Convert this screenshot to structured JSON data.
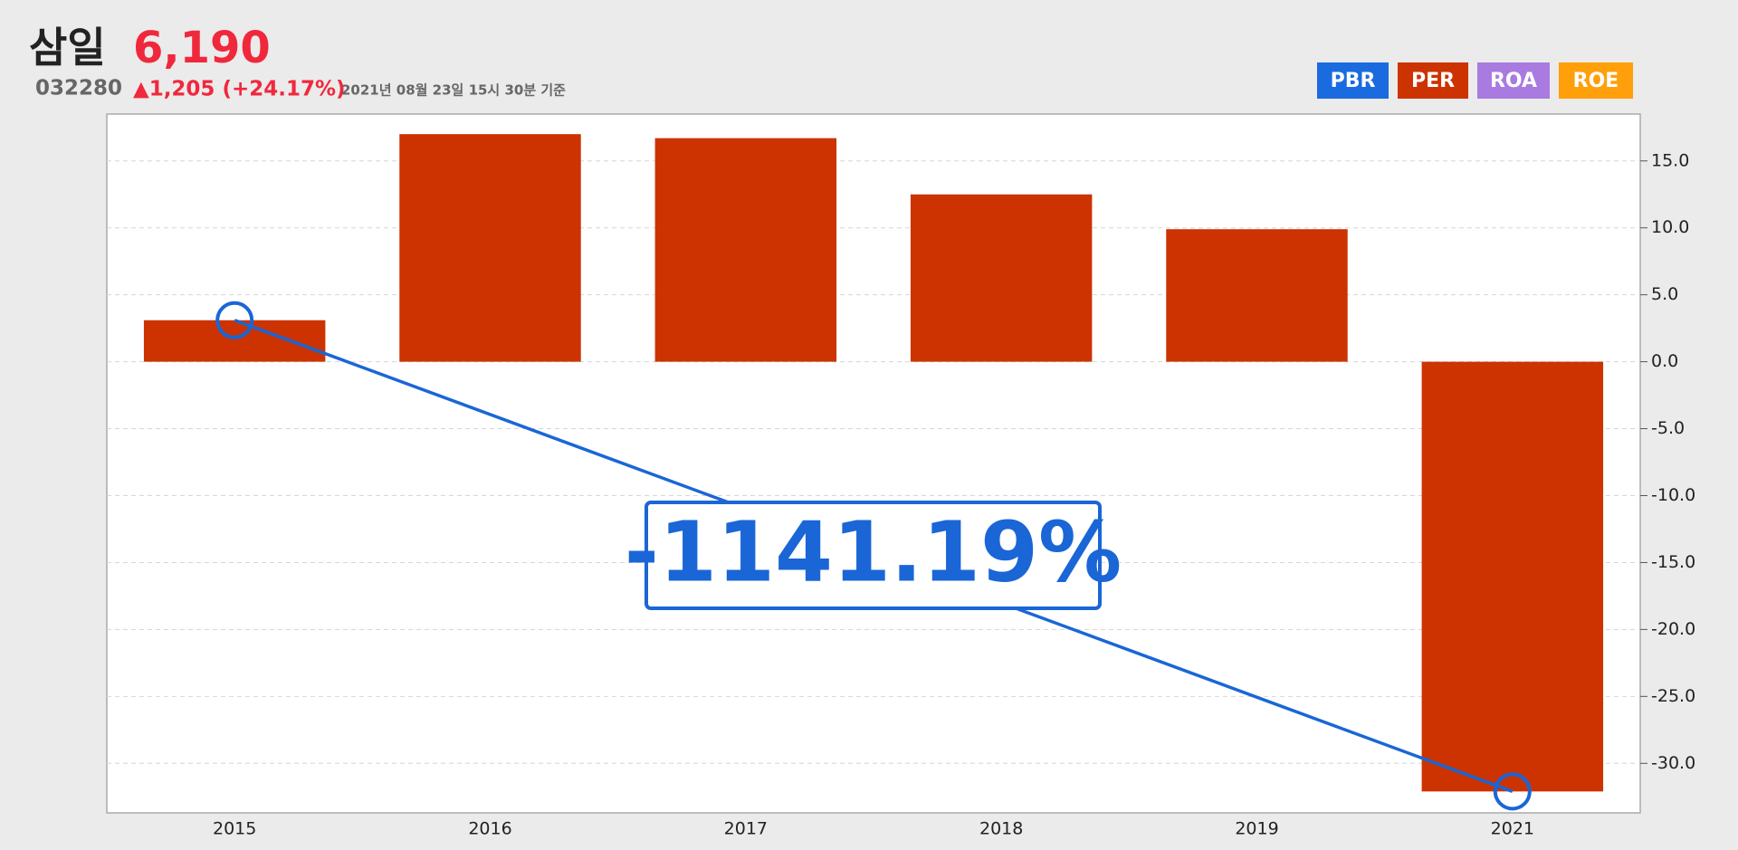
{
  "header": {
    "name": "삼일",
    "price": "6,190",
    "code": "032280",
    "change": "▲1,205 (+24.17%)",
    "timestamp": "2021년 08월 23일 15시 30분 기준"
  },
  "tabs": [
    {
      "label": "PBR",
      "color": "#1a6be0"
    },
    {
      "label": "PER",
      "color": "#cc3300"
    },
    {
      "label": "ROA",
      "color": "#a97be0"
    },
    {
      "label": "ROE",
      "color": "#ff9f0a"
    }
  ],
  "chart_data": {
    "type": "bar",
    "categories": [
      "2015",
      "2016",
      "2017",
      "2018",
      "2019",
      "2021"
    ],
    "values": [
      3.1,
      17.0,
      16.7,
      12.5,
      9.9,
      -32.1
    ],
    "color": "#cc3300",
    "ylim": [
      -33.7,
      18.5
    ],
    "yticks": [
      {
        "value": -30,
        "label": "-30.0"
      },
      {
        "value": -25,
        "label": "-25.0"
      },
      {
        "value": -20,
        "label": "-20.0"
      },
      {
        "value": -15,
        "label": "-15.0"
      },
      {
        "value": -10,
        "label": "-10.0"
      },
      {
        "value": -5,
        "label": "-5.0"
      },
      {
        "value": 0,
        "label": "0.0"
      },
      {
        "value": 5,
        "label": "5.0"
      },
      {
        "value": 10,
        "label": "10.0"
      },
      {
        "value": 15,
        "label": "15.0"
      }
    ],
    "grid": true,
    "annotation": "-1141.19%",
    "annotation_color": "#1a66d6"
  }
}
